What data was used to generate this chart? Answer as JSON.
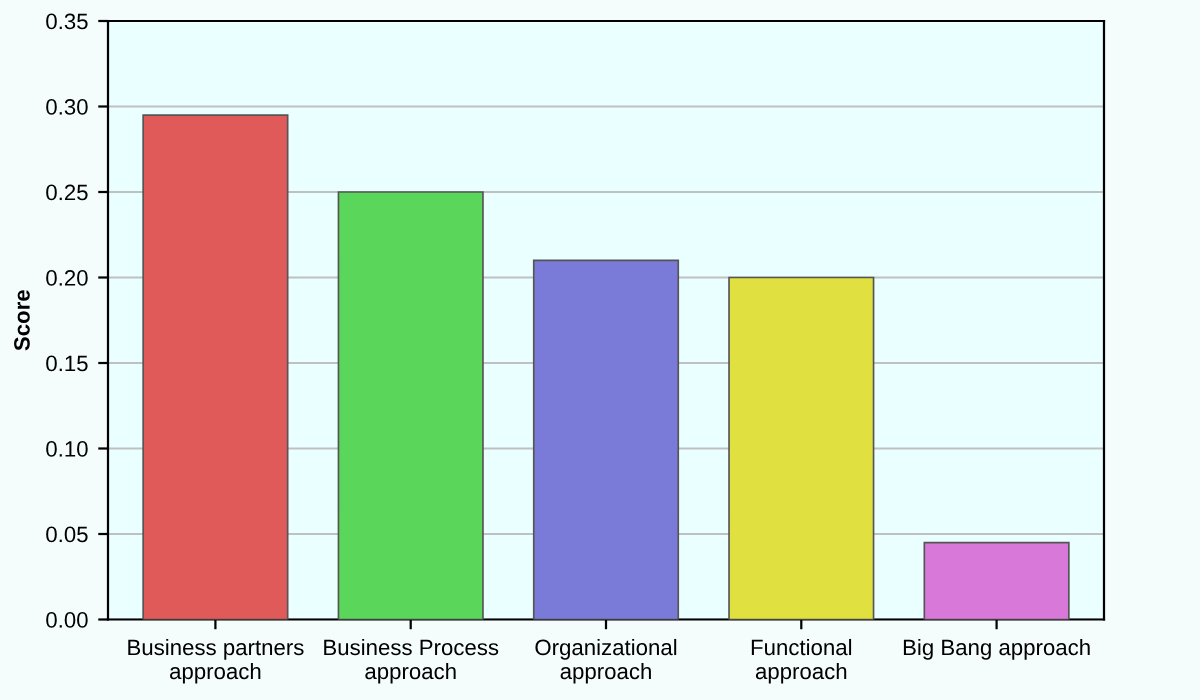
{
  "chart_data": {
    "type": "bar",
    "ylabel": "Score",
    "categories": [
      "Business partners\napproach",
      "Business Process\napproach",
      "Organizational\napproach",
      "Functional\napproach",
      "Big Bang approach"
    ],
    "values": [
      0.295,
      0.25,
      0.21,
      0.2,
      0.045
    ],
    "colors": [
      "#e05a5a",
      "#5ad65a",
      "#7a7ad8",
      "#e0e040",
      "#d878d8"
    ],
    "ylim": [
      0,
      0.35
    ],
    "yticks": [
      {
        "value": 0,
        "label": "0.00"
      },
      {
        "value": 0.05,
        "label": "0.05"
      },
      {
        "value": 0.1,
        "label": "0.10"
      },
      {
        "value": 0.15,
        "label": "0.15"
      },
      {
        "value": 0.2,
        "label": "0.20"
      },
      {
        "value": 0.25,
        "label": "0.25"
      },
      {
        "value": 0.3,
        "label": "0.30"
      },
      {
        "value": 0.35,
        "label": "0.35"
      }
    ],
    "grid": "y",
    "legend": false
  }
}
